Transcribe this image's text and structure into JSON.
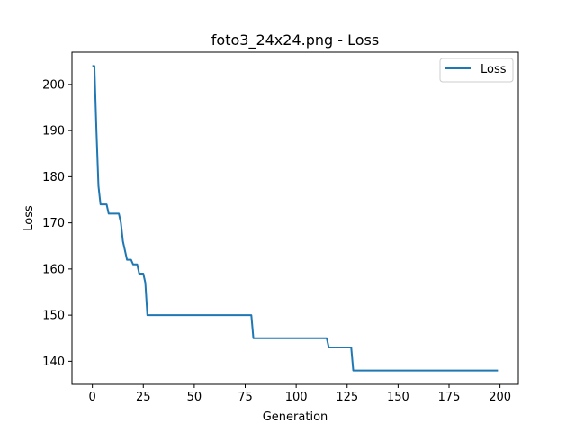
{
  "chart_data": {
    "type": "line",
    "title": "foto3_24x24.png - Loss",
    "xlabel": "Generation",
    "ylabel": "Loss",
    "xlim": [
      -10,
      209
    ],
    "ylim": [
      135,
      207
    ],
    "xticks": [
      0,
      25,
      50,
      75,
      100,
      125,
      150,
      175,
      200
    ],
    "yticks": [
      140,
      150,
      160,
      170,
      180,
      190,
      200
    ],
    "grid": false,
    "legend_position": "top-right",
    "series": [
      {
        "name": "Loss",
        "color": "#1f77b4",
        "points": [
          [
            0,
            204
          ],
          [
            1,
            204
          ],
          [
            2,
            190
          ],
          [
            3,
            178
          ],
          [
            4,
            174
          ],
          [
            5,
            174
          ],
          [
            6,
            174
          ],
          [
            7,
            174
          ],
          [
            8,
            172
          ],
          [
            9,
            172
          ],
          [
            10,
            172
          ],
          [
            11,
            172
          ],
          [
            12,
            172
          ],
          [
            13,
            172
          ],
          [
            14,
            170
          ],
          [
            15,
            166
          ],
          [
            16,
            164
          ],
          [
            17,
            162
          ],
          [
            18,
            162
          ],
          [
            19,
            162
          ],
          [
            20,
            161
          ],
          [
            21,
            161
          ],
          [
            22,
            161
          ],
          [
            23,
            159
          ],
          [
            24,
            159
          ],
          [
            25,
            159
          ],
          [
            26,
            157
          ],
          [
            27,
            150
          ],
          [
            28,
            150
          ],
          [
            78,
            150
          ],
          [
            79,
            145
          ],
          [
            80,
            145
          ],
          [
            115,
            145
          ],
          [
            116,
            143
          ],
          [
            117,
            143
          ],
          [
            127,
            143
          ],
          [
            128,
            138
          ],
          [
            129,
            138
          ],
          [
            199,
            138
          ]
        ]
      }
    ]
  }
}
